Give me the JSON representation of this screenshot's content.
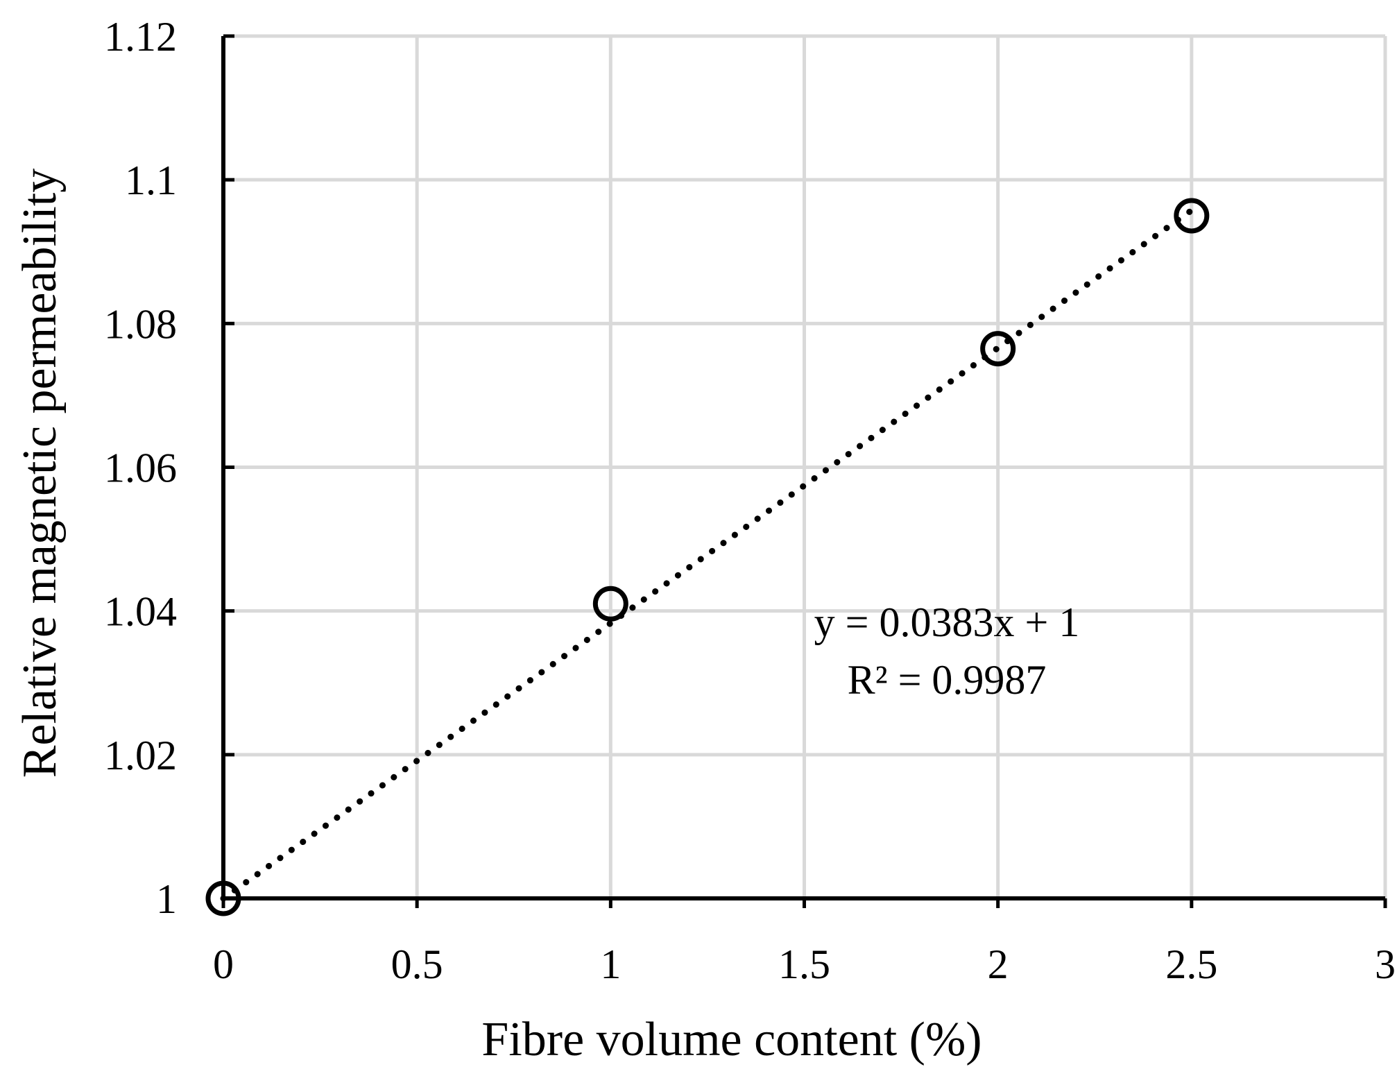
{
  "chart_data": {
    "type": "scatter",
    "xlabel": "Fibre volume content (%)",
    "ylabel": "Relative magnetic permeability",
    "xlim": [
      0,
      3
    ],
    "ylim": [
      1,
      1.12
    ],
    "x_ticks": [
      "0",
      "0.5",
      "1",
      "1.5",
      "2",
      "2.5",
      "3"
    ],
    "y_ticks": [
      "1",
      "1.02",
      "1.04",
      "1.06",
      "1.08",
      "1.1",
      "1.12"
    ],
    "grid": true,
    "series": [
      {
        "points": [
          {
            "x": 0,
            "y": 1.0
          },
          {
            "x": 1,
            "y": 1.041
          },
          {
            "x": 2,
            "y": 1.0765
          },
          {
            "x": 2.5,
            "y": 1.095
          }
        ],
        "marker": "open-circle",
        "color": "#000000"
      }
    ],
    "trendline": {
      "type": "linear",
      "slope": 0.0383,
      "intercept": 1,
      "style": "dotted",
      "x_range": [
        0,
        2.5
      ],
      "equation": "y = 0.0383x + 1",
      "r_squared": "R² = 0.9987"
    },
    "colors": {
      "grid": "#d9d9d9",
      "axis": "#000000"
    }
  }
}
